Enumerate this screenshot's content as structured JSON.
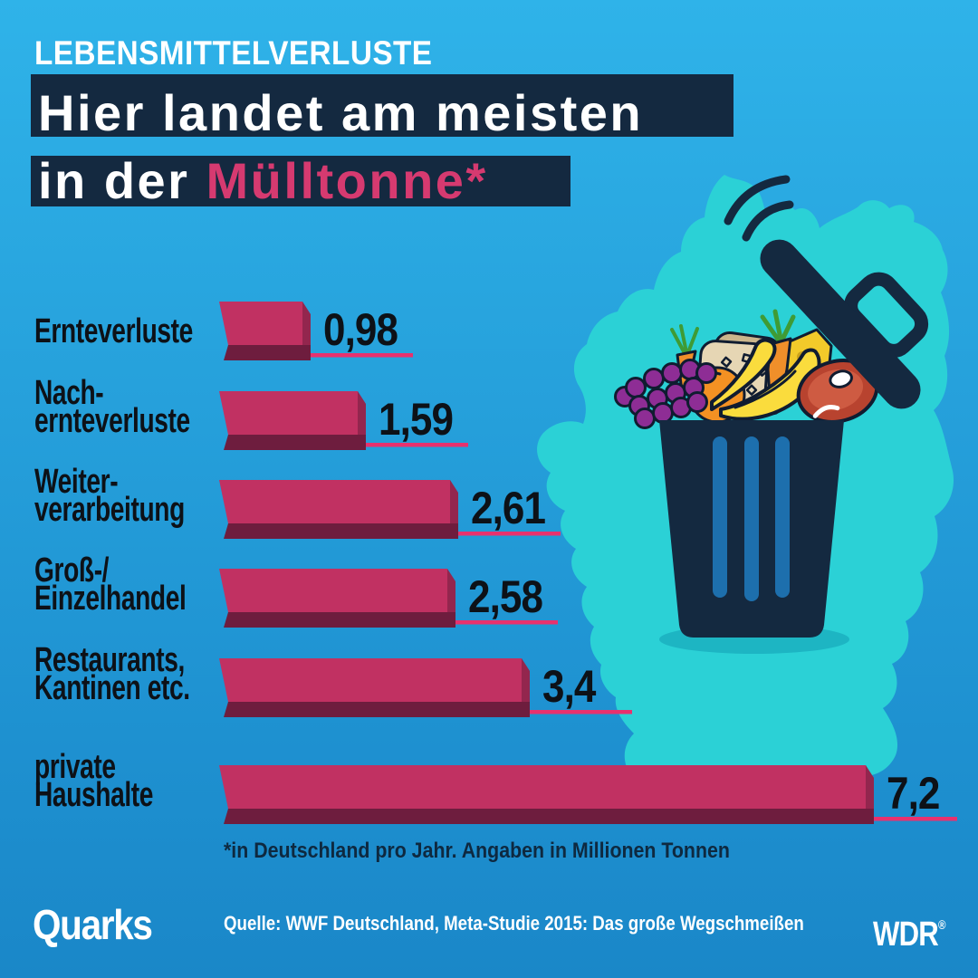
{
  "header": {
    "kicker": "LEBENSMITTELVERLUSTE",
    "title_line1": "Hier landet am meisten",
    "title_line2_prefix": "in der ",
    "title_line2_highlight": "Mülltonne*"
  },
  "chart_data": {
    "type": "bar",
    "orientation": "horizontal",
    "categories": [
      [
        "Ernteverluste"
      ],
      [
        "Nach-",
        "ernteverluste"
      ],
      [
        "Weiter-",
        "verarbeitung"
      ],
      [
        "Groß-/",
        "Einzelhandel"
      ],
      [
        "Restaurants,",
        "Kantinen etc."
      ],
      [
        "private",
        "Haushalte"
      ]
    ],
    "values": [
      0.98,
      1.59,
      2.61,
      2.58,
      3.4,
      7.2
    ],
    "value_labels": [
      "0,98",
      "1,59",
      "2,61",
      "2,58",
      "3,4",
      "7,2"
    ],
    "unit": "Millionen Tonnen",
    "xlim": [
      0,
      7.2
    ],
    "grid": false,
    "legend": false,
    "footnote": "*in Deutschland pro Jahr. Angaben in Millionen Tonnen"
  },
  "footer": {
    "brand": "Quarks",
    "source": "Quelle: WWF Deutschland, Meta-Studie 2015: Das große Wegschmeißen",
    "network": "WDR",
    "registered_mark": "®"
  },
  "illustration": {
    "map": "germany-map-silhouette",
    "items": [
      "trash-can",
      "trash-lid",
      "motion-arcs",
      "grapes",
      "orange",
      "carrot",
      "bread",
      "banana",
      "cheese",
      "meat"
    ]
  },
  "colors": {
    "bg-top": "#2fb3e9",
    "bg-bottom": "#1a87c8",
    "navy": "#142940",
    "pink-title": "#d63a70",
    "map-teal": "#2bd1d6",
    "shadow-teal": "#1db5c3",
    "stripe-blue": "#1d6fad",
    "bar-front": "#c13162",
    "bar-side": "#93264e",
    "bar-depth": "#6e1d3e",
    "underline-pink": "#e8316e",
    "text-dark": "#0d1117",
    "footnote": "#0e2940",
    "outline-dark": "#101c30",
    "grape-purple": "#8e2d95",
    "orange-fruit": "#f39123",
    "carrot-orange": "#ef8f2a",
    "leaf-green": "#3f9b35",
    "bread-tan": "#e6d6b4",
    "bread-crust": "#cbb68c",
    "banana-yellow": "#fadc3d",
    "cheese-yellow": "#f2ca2a",
    "cheese-hole": "#caa11b",
    "meat-red": "#b8432f",
    "meat-inner": "#ce5b42"
  }
}
